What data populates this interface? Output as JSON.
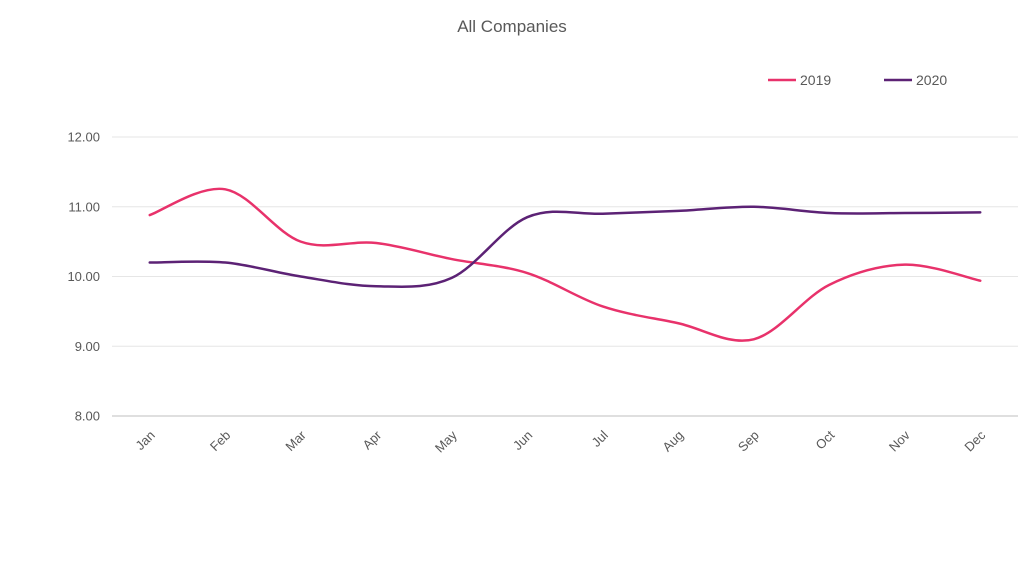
{
  "chart_data": {
    "type": "line",
    "title": "All Companies",
    "xlabel": "",
    "ylabel": "",
    "categories": [
      "Jan",
      "Feb",
      "Mar",
      "Apr",
      "May",
      "Jun",
      "Jul",
      "Aug",
      "Sep",
      "Oct",
      "Nov",
      "Dec"
    ],
    "ylim": [
      8,
      12
    ],
    "yticks": [
      "8.00",
      "9.00",
      "10.00",
      "11.00",
      "12.00"
    ],
    "y_tick_values": [
      8,
      9,
      10,
      11,
      12
    ],
    "grid": true,
    "smooth": true,
    "legend_position": "top-right",
    "series": [
      {
        "name": "2019",
        "color": "#e8326b",
        "values": [
          10.88,
          11.25,
          10.5,
          10.48,
          10.25,
          10.05,
          9.57,
          9.33,
          9.1,
          9.88,
          10.17,
          9.94
        ]
      },
      {
        "name": "2020",
        "color": "#5c2275",
        "values": [
          10.2,
          10.2,
          10.0,
          9.86,
          9.98,
          10.85,
          10.9,
          10.94,
          11.0,
          10.91,
          10.91,
          10.92
        ]
      }
    ]
  }
}
